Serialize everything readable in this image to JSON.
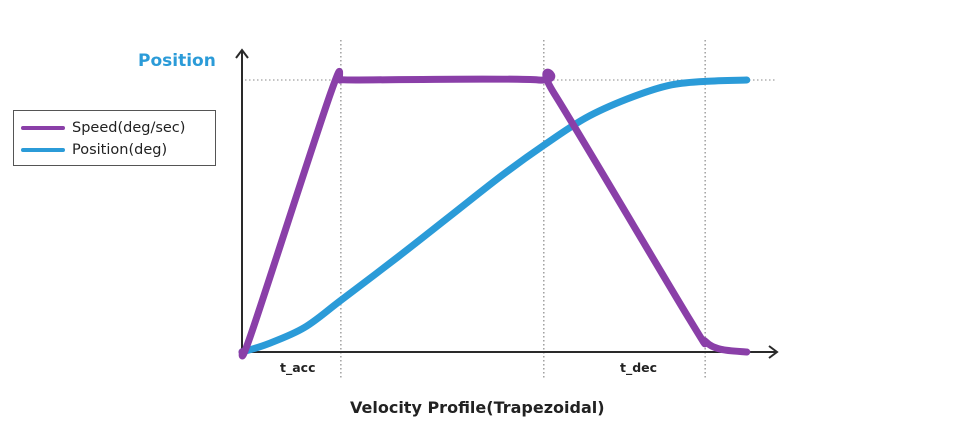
{
  "chart_data": {
    "type": "line",
    "title": "Velocity Profile(Trapezoidal)",
    "ylabel": "Position",
    "xlabel": "",
    "x_tick_labels": [
      "t_acc",
      "t_dec"
    ],
    "x_markers": [
      {
        "label": "t_acc",
        "t": 0.19
      },
      {
        "label": "",
        "t": 0.58
      },
      {
        "label": "",
        "t": 0.89
      }
    ],
    "xlim": [
      0,
      1
    ],
    "ylim": [
      0,
      1
    ],
    "grid": "dotted reference lines",
    "legend": {
      "placement": "left",
      "entries": [
        "Speed(deg/sec)",
        "Position(deg)"
      ]
    },
    "series": [
      {
        "name": "Speed(deg/sec)",
        "color": "#8a3fa8",
        "points": [
          [
            0,
            0
          ],
          [
            0.02,
            0.08
          ],
          [
            0.17,
            0.95
          ],
          [
            0.19,
            1.0
          ],
          [
            0.22,
            1.0
          ],
          [
            0.57,
            1.0
          ],
          [
            0.6,
            0.95
          ],
          [
            0.86,
            0.12
          ],
          [
            0.89,
            0.04
          ],
          [
            0.92,
            0.01
          ],
          [
            0.97,
            0
          ]
        ]
      },
      {
        "name": "Position(deg)",
        "color": "#2b9bd8",
        "points": [
          [
            0,
            0
          ],
          [
            0.05,
            0.03
          ],
          [
            0.12,
            0.09
          ],
          [
            0.19,
            0.19
          ],
          [
            0.3,
            0.35
          ],
          [
            0.4,
            0.5
          ],
          [
            0.5,
            0.65
          ],
          [
            0.58,
            0.76
          ],
          [
            0.66,
            0.86
          ],
          [
            0.74,
            0.93
          ],
          [
            0.82,
            0.98
          ],
          [
            0.89,
            0.995
          ],
          [
            0.97,
            1.0
          ]
        ]
      }
    ],
    "colors": {
      "axis": "#2a2a2a",
      "grid": "#888888",
      "ylabel": "#2b9bd8"
    }
  }
}
